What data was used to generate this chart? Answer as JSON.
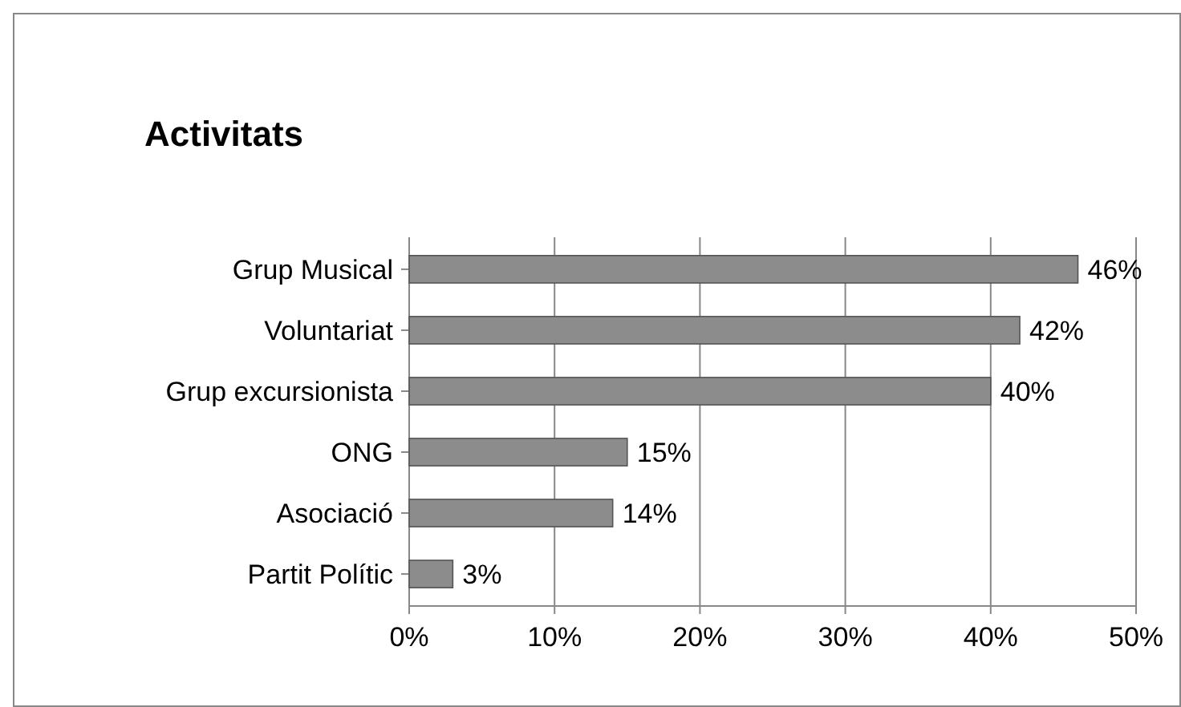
{
  "chart_data": {
    "type": "bar",
    "orientation": "horizontal",
    "title": "Activitats",
    "categories": [
      "Grup Musical",
      "Voluntariat",
      "Grup excursionista",
      "ONG",
      "Asociació",
      "Partit Polític"
    ],
    "values": [
      46,
      42,
      40,
      15,
      14,
      3
    ],
    "value_labels": [
      "46%",
      "42%",
      "40%",
      "15%",
      "14%",
      "3%"
    ],
    "color": "#8c8c8c",
    "xlim": [
      0,
      50
    ],
    "xticks": [
      {
        "value": 0,
        "label": "0%"
      },
      {
        "value": 10,
        "label": "10%"
      },
      {
        "value": 20,
        "label": "20%"
      },
      {
        "value": 30,
        "label": "30%"
      },
      {
        "value": 40,
        "label": "40%"
      },
      {
        "value": 50,
        "label": "50%"
      }
    ],
    "grid": "x"
  }
}
